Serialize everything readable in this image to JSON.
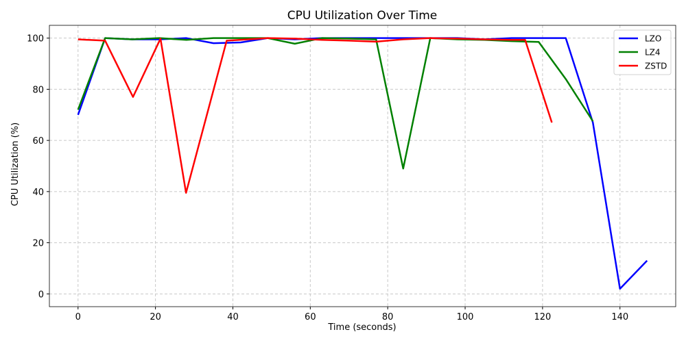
{
  "chart_data": {
    "type": "line",
    "title": "CPU Utilization Over Time",
    "xlabel": "Time (seconds)",
    "ylabel": "CPU Utilization (%)",
    "xlim": [
      -7.4,
      154.4
    ],
    "ylim": [
      -5,
      105
    ],
    "xticks": [
      0,
      20,
      40,
      60,
      80,
      100,
      120,
      140
    ],
    "yticks": [
      0,
      20,
      40,
      60,
      80,
      100
    ],
    "grid": true,
    "legend_position": "top-right",
    "series": [
      {
        "name": "LZO",
        "color": "#0000ff",
        "x": [
          0,
          7,
          14,
          21,
          28,
          35,
          42,
          49,
          56,
          63,
          70,
          77,
          84,
          91,
          98,
          105,
          112,
          119,
          126,
          133,
          140,
          147
        ],
        "y": [
          70,
          100,
          99.5,
          99.5,
          100,
          98,
          98.3,
          100,
          99.5,
          100,
          100,
          100,
          100,
          100,
          100,
          99.5,
          100,
          100,
          100,
          67,
          2,
          13
        ]
      },
      {
        "name": "LZ4",
        "color": "#008000",
        "x": [
          0,
          7,
          14,
          21,
          28,
          35,
          42,
          49,
          56,
          63,
          70,
          77,
          84,
          91,
          98,
          105,
          112,
          119,
          126,
          133
        ],
        "y": [
          72,
          100,
          99.5,
          100,
          99.3,
          100,
          100,
          100,
          97.8,
          100,
          99.8,
          99.5,
          49,
          100,
          99.5,
          99.3,
          98.8,
          98.5,
          84,
          67.5
        ]
      },
      {
        "name": "ZSTD",
        "color": "#ff0000",
        "x": [
          0,
          7,
          14.2,
          21.3,
          27.9,
          38.4,
          49,
          56,
          63,
          70,
          77,
          84,
          91,
          98,
          105,
          112,
          115.5,
          122.4
        ],
        "y": [
          99.5,
          99,
          77,
          99.8,
          39.5,
          99,
          100,
          99.8,
          99.3,
          99,
          98.6,
          99.5,
          100,
          99.8,
          99.5,
          99.3,
          99.3,
          67
        ]
      }
    ]
  }
}
